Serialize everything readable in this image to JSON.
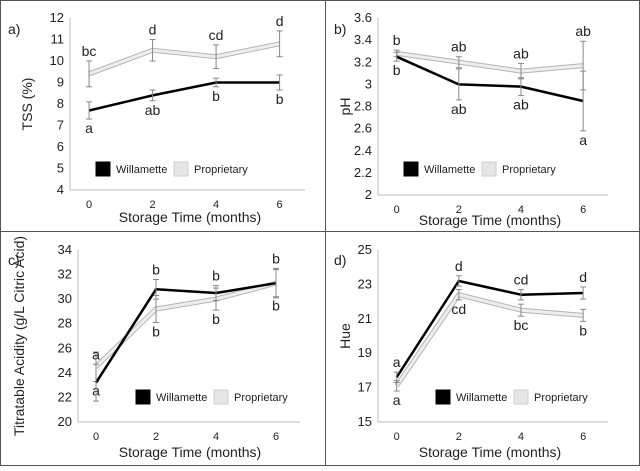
{
  "chart_data": [
    {
      "panel_label": "a)",
      "type": "line",
      "xlabel": "Storage Time (months)",
      "ylabel": "TSS (%)",
      "ylim": [
        4,
        12
      ],
      "yticks": [
        "4",
        "5",
        "6",
        "7",
        "8",
        "9",
        "10",
        "11",
        "12"
      ],
      "xticks": [
        "0",
        "2",
        "4",
        "6"
      ],
      "x": [
        0,
        2,
        4,
        6
      ],
      "legend_position": "bottom-left",
      "series": [
        {
          "name": "Willamette",
          "color": "#000000",
          "values": [
            7.7,
            8.4,
            9.0,
            9.0
          ],
          "errors": [
            0.4,
            0.25,
            0.2,
            0.35
          ],
          "letters": [
            "a",
            "ab",
            "b",
            "b"
          ],
          "letter_side": "below"
        },
        {
          "name": "Proprietary",
          "color": "#d0d0d0",
          "values": [
            9.4,
            10.5,
            10.2,
            10.8
          ],
          "errors": [
            0.6,
            0.5,
            0.55,
            0.6
          ],
          "letters": [
            "bc",
            "d",
            "cd",
            "d"
          ],
          "letter_side": "above"
        }
      ]
    },
    {
      "panel_label": "b)",
      "type": "line",
      "xlabel": "Storage Time (months)",
      "ylabel": "pH",
      "ylim": [
        2,
        3.6
      ],
      "yticks": [
        "2",
        "2.2",
        "2.4",
        "2.6",
        "2.8",
        "3",
        "3.2",
        "3.4",
        "3.6"
      ],
      "xticks": [
        "0",
        "2",
        "4",
        "6"
      ],
      "x": [
        0,
        2,
        4,
        6
      ],
      "legend_position": "bottom-left",
      "series": [
        {
          "name": "Willamette",
          "color": "#000000",
          "values": [
            3.25,
            3.0,
            2.98,
            2.85
          ],
          "errors": [
            0.04,
            0.14,
            0.08,
            0.27
          ],
          "letters": [
            "b",
            "ab",
            "ab",
            "a"
          ],
          "letter_side": "below"
        },
        {
          "name": "Proprietary",
          "color": "#d0d0d0",
          "values": [
            3.28,
            3.2,
            3.12,
            3.17
          ],
          "errors": [
            0.03,
            0.05,
            0.07,
            0.22
          ],
          "letters": [
            "b",
            "ab",
            "ab",
            "ab"
          ],
          "letter_side": "above"
        }
      ]
    },
    {
      "panel_label": "c)",
      "type": "line",
      "xlabel": "Storage Time (months)",
      "ylabel": "Titratable Acidity (g/L Citric Acid)",
      "ylim": [
        20,
        34
      ],
      "yticks": [
        "20",
        "22",
        "24",
        "26",
        "28",
        "30",
        "32",
        "34"
      ],
      "xticks": [
        "0",
        "2",
        "4",
        "6"
      ],
      "x": [
        0,
        2,
        4,
        6
      ],
      "legend_position": "bottom-right",
      "series": [
        {
          "name": "Willamette",
          "color": "#000000",
          "values": [
            23.2,
            30.8,
            30.5,
            31.3
          ],
          "errors": [
            1.5,
            0.8,
            0.6,
            1.2
          ],
          "letters": [
            "a",
            "b",
            "b",
            "b"
          ],
          "letter_side": "above"
        },
        {
          "name": "Proprietary",
          "color": "#d0d0d0",
          "values": [
            24.5,
            29.2,
            30.0,
            31.3
          ],
          "errors": [
            1.2,
            1.1,
            0.9,
            1.1
          ],
          "letters": [
            "a",
            "b",
            "b",
            "b"
          ],
          "letter_side": "below"
        }
      ]
    },
    {
      "panel_label": "d)",
      "type": "line",
      "xlabel": "Storage Time (months)",
      "ylabel": "Hue",
      "ylim": [
        15,
        25
      ],
      "yticks": [
        "15",
        "17",
        "19",
        "21",
        "23",
        "25"
      ],
      "xticks": [
        "0",
        "2",
        "4",
        "6"
      ],
      "x": [
        0,
        2,
        4,
        6
      ],
      "legend_position": "bottom-right",
      "series": [
        {
          "name": "Willamette",
          "color": "#000000",
          "values": [
            17.6,
            23.2,
            22.4,
            22.5
          ],
          "errors": [
            0.3,
            0.3,
            0.3,
            0.35
          ],
          "letters": [
            "a",
            "d",
            "cd",
            "d"
          ],
          "letter_side": "above"
        },
        {
          "name": "Proprietary",
          "color": "#d0d0d0",
          "values": [
            17.1,
            22.4,
            21.5,
            21.2
          ],
          "errors": [
            0.3,
            0.3,
            0.35,
            0.35
          ],
          "letters": [
            "a",
            "cd",
            "bc",
            "b"
          ],
          "letter_side": "below"
        }
      ]
    }
  ]
}
